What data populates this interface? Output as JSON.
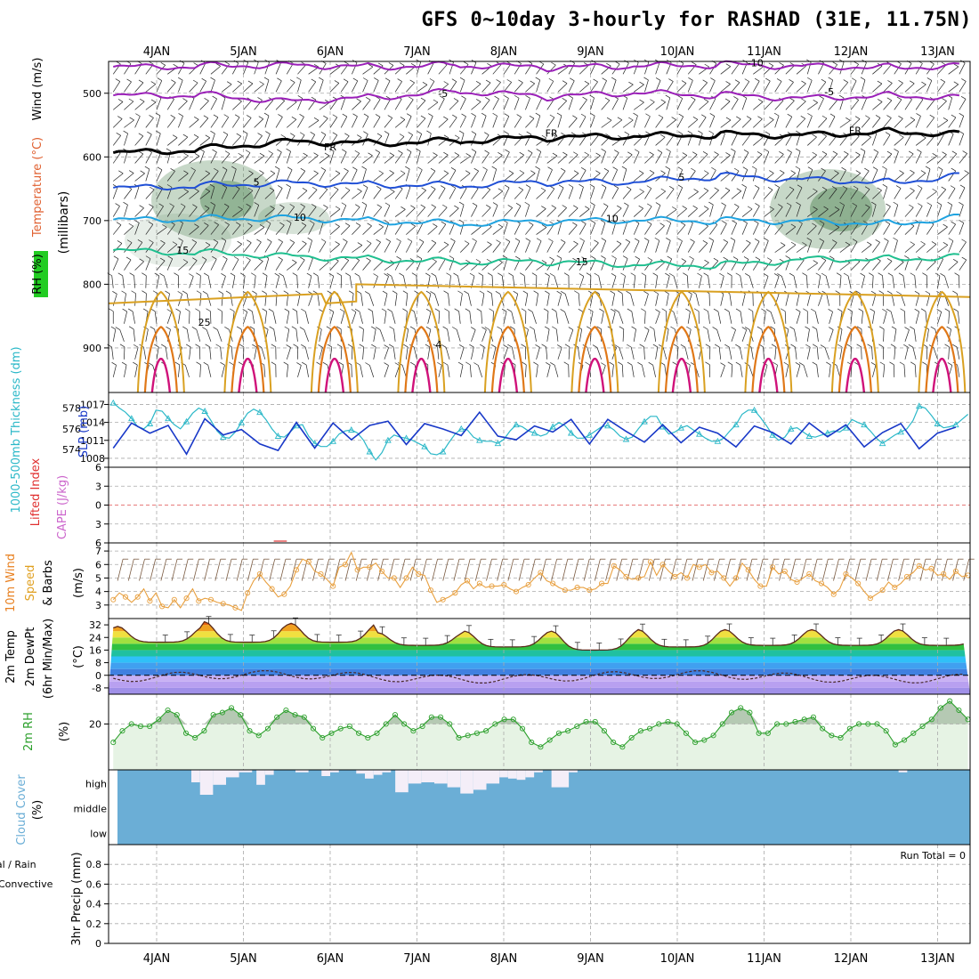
{
  "title": "GFS 0~10day 3-hourly for RASHAD (31E, 11.75N)",
  "dates": [
    "4JAN",
    "5JAN",
    "6JAN",
    "7JAN",
    "8JAN",
    "9JAN",
    "10JAN",
    "11JAN",
    "12JAN",
    "13JAN"
  ],
  "run_total": "Run Total = 0",
  "colors": {
    "purple": "#9a1fb8",
    "black": "#000000",
    "blue": "#1f4fd6",
    "sky": "#1fa3e0",
    "teal": "#1fbf8f",
    "gold": "#d9a020",
    "orange": "#e07818",
    "magenta": "#d0127a",
    "cyan": "#2bb8c8",
    "slp": "#1838c8",
    "wind": "#e8a040",
    "rh": "#2ca02c",
    "cloud": "#6baed6"
  },
  "chart_data": [
    {
      "id": "upper",
      "type": "contour",
      "ylabel_lines": [
        "RH (%)",
        "Temperature (°C)",
        "Wind (m/s)"
      ],
      "yaxis_text": "(millibars)",
      "yticks": [
        500,
        600,
        700,
        800,
        900
      ],
      "ylim": [
        450,
        970
      ],
      "contour_labels": [
        {
          "text": "-10",
          "t": 6.9,
          "p": 458
        },
        {
          "text": "-5",
          "t": 3.3,
          "p": 506
        },
        {
          "text": "-5",
          "t": 7.75,
          "p": 503
        },
        {
          "text": "FR",
          "t": 2.0,
          "p": 590
        },
        {
          "text": "FR",
          "t": 4.55,
          "p": 568
        },
        {
          "text": "FR",
          "t": 8.05,
          "p": 564
        },
        {
          "text": "5",
          "t": 1.15,
          "p": 645
        },
        {
          "text": "5",
          "t": 6.05,
          "p": 637
        },
        {
          "text": "10",
          "t": 1.65,
          "p": 700
        },
        {
          "text": "10",
          "t": 5.25,
          "p": 702
        },
        {
          "text": "15",
          "t": 0.3,
          "p": 752
        },
        {
          "text": "15",
          "t": 4.9,
          "p": 770
        },
        {
          "text": "25",
          "t": 0.55,
          "p": 865
        },
        {
          "text": "4",
          "t": 3.25,
          "p": 900
        }
      ],
      "temperature_isolines": [
        {
          "label": "-10",
          "p": [
            460,
            457,
            455,
            458,
            456,
            460,
            458,
            455,
            457,
            459,
            456
          ]
        },
        {
          "label": "-5",
          "p": [
            505,
            502,
            512,
            506,
            497,
            506,
            500,
            503,
            507,
            503,
            508
          ]
        },
        {
          "label": "FR",
          "p": [
            595,
            588,
            575,
            578,
            575,
            570,
            568,
            565,
            565,
            560,
            565
          ]
        },
        {
          "label": "5",
          "p": [
            650,
            645,
            640,
            643,
            645,
            640,
            640,
            630,
            635,
            640,
            625
          ]
        },
        {
          "label": "10",
          "p": [
            700,
            697,
            695,
            700,
            705,
            702,
            700,
            700,
            700,
            705,
            690
          ]
        },
        {
          "label": "15",
          "p": [
            748,
            750,
            755,
            760,
            765,
            765,
            770,
            770,
            760,
            760,
            755
          ]
        }
      ]
    },
    {
      "id": "thickness_slp",
      "type": "line",
      "ylabel_left": "1000-500mb Thickness (dm)",
      "ylabel_right": "SLP (mb)",
      "yticks_left": [
        574,
        576,
        578
      ],
      "yticks_right": [
        1008,
        1011,
        1014,
        1017
      ],
      "series": [
        {
          "name": "1000-500mb Thickness (dm)",
          "ylim": [
            572.3,
            579.5
          ],
          "values": [
            578.5,
            578,
            577.6,
            577,
            576.2,
            576,
            576.5,
            577.8,
            577.7,
            577,
            576.4,
            576,
            576.7,
            577.5,
            578,
            577.7,
            576.8,
            575.8,
            575.2,
            575.1,
            575.7,
            576.6,
            577.5,
            577.9,
            577.6,
            576.9,
            576,
            575.3,
            575.2,
            575.7,
            576.3,
            576.4,
            575.3,
            574.6,
            574.3,
            574.3,
            574.8,
            575.5,
            575.8,
            575.9,
            575.6,
            574.9,
            573.8,
            573,
            573.7,
            574.9,
            575.4,
            575.2,
            575.1,
            574.9,
            574.6,
            574.3,
            573.6,
            573.5,
            573.8,
            574.7,
            575.5,
            576,
            575.9,
            575.2,
            574.9,
            574.8,
            574.8,
            574.6,
            575,
            575.8,
            576.4,
            576.2,
            575.8,
            575.6,
            575.3,
            575.5,
            576.2,
            576.6,
            576.3,
            575.6,
            575.1,
            575.1,
            575.4,
            575.8,
            576.2,
            576.3,
            575.9,
            575.3,
            575,
            575.2,
            576,
            576.7,
            577.2,
            577.2,
            576.2,
            575.5,
            575.7,
            576.1,
            576.3,
            575.9,
            575.5,
            575.1,
            574.8,
            574.8,
            575.1,
            575.8,
            576.4,
            577.4,
            577.8,
            577.8,
            577.1,
            576.3,
            575.4,
            574.9,
            575.2,
            576,
            576.1,
            575.7,
            575.3,
            575.2,
            575.4,
            575.6,
            575.8,
            575.7,
            576.1,
            576.9,
            576.6,
            576.4,
            575.8,
            575.1,
            574.6,
            575,
            575.4,
            575.7,
            576,
            576.8,
            578.2,
            578,
            577.3,
            576.5,
            576.1,
            576.2,
            576.4,
            576.9,
            577.4
          ]
        },
        {
          "name": "SLP (mb)",
          "ylim": [
            1006.5,
            1019
          ],
          "values": [
            1009.7,
            1010.2,
            1012.4,
            1013.9,
            1014.1,
            1013,
            1012.2,
            1012.7,
            1013.2,
            1013.5,
            1011.3,
            1009.4,
            1008.7,
            1009,
            1011.7,
            1014.6,
            1015.2,
            1013.9,
            1011.9,
            1010.6,
            1011.1,
            1012.8,
            1013.7,
            1012.6,
            1010.4,
            1008.3,
            1008.5,
            1009.3,
            1011.2,
            1013.6,
            1014,
            1013,
            1010.4,
            1009.7,
            1010.3,
            1012.9,
            1013.9,
            1012.6,
            1011.8,
            1011.1,
            1010.9,
            1011.9,
            1013.5,
            1015.6,
            1016.2,
            1014.2,
            1011.7,
            1010.3,
            1010.3,
            1011,
            1012.3,
            1013.8,
            1014.6,
            1014.3,
            1012.9,
            1011.2,
            1010.9,
            1011.8,
            1013.3,
            1014.8,
            1015.7,
            1016.3,
            1014.7,
            1011.7,
            1009.6,
            1009.7,
            1011.1,
            1012.9,
            1013.9,
            1013.4,
            1012.1,
            1011.8,
            1012.4,
            1013.5,
            1014.7,
            1014.5,
            1012.9,
            1011.2,
            1010.4,
            1011.1,
            1012.8,
            1014.5,
            1015.3,
            1014.7,
            1012.5,
            1010.5,
            1010.1,
            1010.7,
            1011.7,
            1012.9,
            1013.6,
            1012.8,
            1011.3,
            1010.6,
            1011.2,
            1012.5,
            1013.2,
            1013.2,
            1012.9,
            1012.2,
            1011.2,
            1010.2,
            1009.9,
            1010.6,
            1012.1,
            1013.4,
            1013.9,
            1013.6,
            1012.3,
            1010.9,
            1010.1,
            1010.4,
            1011.5,
            1012.9,
            1013.9,
            1013.6,
            1012.4,
            1011.6,
            1011.8,
            1012.8,
            1013.6,
            1013.4,
            1011.8,
            1009.9,
            1009.3,
            1010.2,
            1012.3,
            1014.1,
            1014.5,
            1013.8,
            1012.3,
            1010.7,
            1009.6,
            1010.2,
            1011.3,
            1012.2,
            1012.6,
            1012.6,
            1013.2,
            1014.3
          ]
        }
      ]
    },
    {
      "id": "li_cape",
      "type": "line",
      "ylabel_left": "Lifted Index",
      "ylabel_right": "CAPE (J/kg)",
      "yticks": [
        "-6",
        "-3",
        "0",
        "3",
        "6"
      ],
      "ylim": [
        -6,
        6
      ],
      "series": [
        {
          "name": "CAPE (J/kg)",
          "note": "near zero; small spike near 5JAN 12Z"
        }
      ]
    },
    {
      "id": "wind10m",
      "type": "line",
      "ylabel_lines": [
        "10m Wind",
        "Speed",
        "& Barbs"
      ],
      "unit": "(m/s)",
      "yticks": [
        3,
        4,
        5,
        6,
        7
      ],
      "ylim": [
        2,
        7.6
      ],
      "series": [
        {
          "name": "10m Wind Speed",
          "values": [
            3.4,
            3.9,
            3.6,
            3.2,
            3.6,
            4.2,
            3.3,
            3.9,
            2.9,
            2.8,
            3.4,
            2.8,
            3.5,
            4.2,
            3.3,
            3.5,
            3.4,
            3.2,
            3.1,
            3.0,
            2.8,
            2.6,
            3.9,
            4.8,
            5.3,
            4.7,
            4.2,
            3.6,
            3.8,
            4.4,
            5.6,
            6.4,
            6.2,
            5.5,
            5.3,
            4.9,
            4.4,
            5.8,
            6.0,
            6.9,
            5.6,
            5.8,
            5.8,
            6.1,
            5.5,
            5.0,
            5.0,
            4.3,
            5.0,
            5.8,
            5.3,
            5.2,
            4.1,
            3.2,
            3.4,
            3.6,
            3.9,
            4.5,
            4.8,
            4.2,
            4.6,
            4.3,
            4.4,
            4.4,
            4.5,
            4.2,
            4.0,
            4.3,
            4.5,
            5.0,
            5.4,
            4.8,
            4.6,
            4.3,
            4.1,
            4.1,
            4.3,
            4.3,
            4.1,
            4.2,
            4.6,
            4.6,
            5.9,
            5.6,
            5.1,
            4.9,
            5.0,
            5.1,
            6.2,
            5.2,
            6.0,
            5.5,
            5.1,
            5.4,
            5.0,
            6.0,
            5.8,
            6.0,
            5.4,
            5.5,
            5.0,
            4.4,
            5.0,
            6.1,
            5.6,
            4.9,
            4.4,
            4.4,
            5.8,
            5.3,
            5.5,
            4.9,
            4.7,
            5.0,
            5.3,
            4.8,
            4.6,
            4.3,
            3.8,
            4.2,
            5.3,
            5.0,
            4.6,
            4.0,
            3.5,
            3.8,
            4.1,
            4.7,
            4.3,
            4.6,
            5.1,
            5.4,
            5.9,
            5.6,
            5.7,
            5.2,
            5.3,
            4.9,
            5.5,
            5.1,
            5.2
          ]
        }
      ]
    },
    {
      "id": "temp2m",
      "type": "area",
      "ylabel_lines": [
        "2m Temp",
        "2m DewPt",
        "(6hr Min/Max)"
      ],
      "unit": "(°C)",
      "yticks": [
        -8,
        0,
        8,
        16,
        24,
        32
      ],
      "ylim": [
        -12,
        36
      ],
      "series": [
        {
          "name": "2m Temp",
          "day_max": [
            31,
            34,
            33,
            27,
            28,
            28,
            29,
            29,
            29,
            29
          ],
          "night_min": [
            21,
            21,
            21,
            19,
            18,
            16,
            18,
            19,
            19,
            19
          ]
        },
        {
          "name": "2m DewPt",
          "values_note": "varies between about -6 and 4 °C"
        }
      ]
    },
    {
      "id": "rh2m",
      "type": "line",
      "ylabel": "2m RH",
      "unit": "(%)",
      "yticks": [
        20
      ],
      "ylim": [
        0,
        33
      ],
      "series": [
        {
          "name": "2m RH",
          "values": [
            12,
            17,
            20,
            19,
            19,
            22,
            26,
            24,
            16,
            14,
            17,
            24,
            25,
            27,
            24,
            17,
            15,
            18,
            23,
            26,
            24,
            23,
            18,
            14,
            16,
            18,
            19,
            16,
            14,
            16,
            20,
            24,
            20,
            17,
            19,
            23,
            23,
            20,
            14,
            15,
            16,
            17,
            20,
            22,
            22,
            18,
            12,
            10,
            13,
            16,
            17,
            19,
            21,
            21,
            17,
            12,
            10,
            14,
            17,
            18,
            20,
            21,
            20,
            16,
            12,
            13,
            15,
            20,
            25,
            27,
            25,
            16,
            16,
            20,
            20,
            21,
            22,
            23,
            18,
            15,
            14,
            18,
            20,
            20,
            20,
            17,
            11,
            13,
            16,
            19,
            22,
            27,
            30,
            26,
            22
          ]
        }
      ]
    },
    {
      "id": "cloud",
      "type": "bar",
      "ylabel": "Cloud Cover",
      "unit": "(%)",
      "ytick_labels": [
        "high",
        "middle",
        "low"
      ],
      "series": [
        {
          "name": "high cloud",
          "segments": [
            [
              0.4,
              0.5,
              0.5
            ],
            [
              0.5,
              0.65,
              1.0
            ],
            [
              0.65,
              0.8,
              0.6
            ],
            [
              0.8,
              0.95,
              0.3
            ],
            [
              0.95,
              1.1,
              0.1
            ],
            [
              1.15,
              1.25,
              0.6
            ],
            [
              1.25,
              1.35,
              0.2
            ],
            [
              1.6,
              1.75,
              0.1
            ],
            [
              1.9,
              2.0,
              0.25
            ],
            [
              2.0,
              2.1,
              0.1
            ],
            [
              2.3,
              2.4,
              0.15
            ],
            [
              2.4,
              2.5,
              0.35
            ],
            [
              2.5,
              2.6,
              0.2
            ],
            [
              2.6,
              2.7,
              0.1
            ],
            [
              2.75,
              2.9,
              0.9
            ],
            [
              2.9,
              3.05,
              0.55
            ],
            [
              3.05,
              3.2,
              0.5
            ],
            [
              3.2,
              3.35,
              0.55
            ],
            [
              3.35,
              3.5,
              0.7
            ],
            [
              3.5,
              3.65,
              0.95
            ],
            [
              3.65,
              3.8,
              0.8
            ],
            [
              3.8,
              3.95,
              0.55
            ],
            [
              3.95,
              4.05,
              0.3
            ],
            [
              4.05,
              4.15,
              0.35
            ],
            [
              4.15,
              4.25,
              0.4
            ],
            [
              4.25,
              4.35,
              0.3
            ],
            [
              4.35,
              4.45,
              0.1
            ],
            [
              4.55,
              4.75,
              0.7
            ],
            [
              4.75,
              4.85,
              0.1
            ],
            [
              8.55,
              8.65,
              0.1
            ]
          ]
        }
      ]
    },
    {
      "id": "precip",
      "type": "bar",
      "ylabel_left": "Total / Rain",
      "ylabel_right": "Convective",
      "ylabel_unit": "3hr Precip (mm)",
      "yticks": [
        0,
        0.2,
        0.4,
        0.6,
        0.8
      ],
      "ylim": [
        0,
        1
      ],
      "series": [
        {
          "name": "3hr Precip",
          "values": []
        }
      ]
    }
  ]
}
